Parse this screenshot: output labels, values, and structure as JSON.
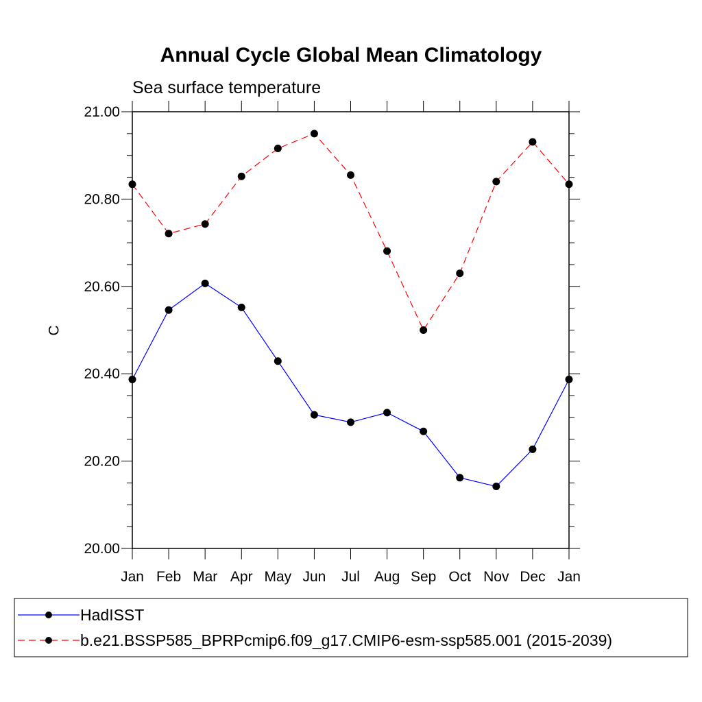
{
  "chart_data": {
    "type": "line",
    "title": "Annual Cycle Global Mean Climatology",
    "subtitle": "Sea surface temperature",
    "xlabel": "",
    "ylabel": "C",
    "categories": [
      "Jan",
      "Feb",
      "Mar",
      "Apr",
      "May",
      "Jun",
      "Jul",
      "Aug",
      "Sep",
      "Oct",
      "Nov",
      "Dec",
      "Jan"
    ],
    "ylim": [
      20.0,
      21.0
    ],
    "yticks": [
      20.0,
      20.2,
      20.4,
      20.6,
      20.8,
      21.0
    ],
    "ytick_labels": [
      "20.00",
      "20.20",
      "20.40",
      "20.60",
      "20.80",
      "21.00"
    ],
    "legend_position": "bottom",
    "series": [
      {
        "name": "HadISST",
        "color": "#0000ff",
        "dash": "solid",
        "values": [
          20.387,
          20.546,
          20.607,
          20.552,
          20.429,
          20.306,
          20.289,
          20.311,
          20.268,
          20.162,
          20.142,
          20.227,
          20.387
        ]
      },
      {
        "name": "b.e21.BSSP585_BPRPcmip6.f09_g17.CMIP6-esm-ssp585.001 (2015-2039)",
        "color": "#ff0000",
        "dash": "dashed",
        "values": [
          20.834,
          20.721,
          20.743,
          20.852,
          20.916,
          20.95,
          20.855,
          20.681,
          20.5,
          20.63,
          20.84,
          20.931,
          20.834
        ]
      }
    ]
  }
}
